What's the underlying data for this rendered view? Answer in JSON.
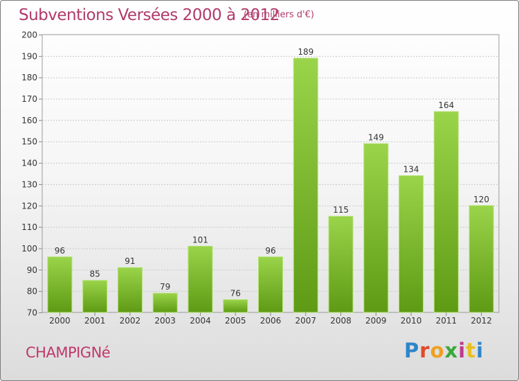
{
  "chart_data": {
    "type": "bar",
    "title": "Subventions Versées 2000 à 2012",
    "subtitle": "(en milliers d'€)",
    "categories": [
      "2000",
      "2001",
      "2002",
      "2003",
      "2004",
      "2005",
      "2006",
      "2007",
      "2008",
      "2009",
      "2010",
      "2011",
      "2012"
    ],
    "values": [
      96,
      85,
      91,
      79,
      101,
      76,
      96,
      189,
      115,
      149,
      134,
      164,
      120
    ],
    "ylim": [
      70,
      200
    ],
    "yticks": [
      70,
      80,
      90,
      100,
      110,
      120,
      130,
      140,
      150,
      160,
      170,
      180,
      190,
      200
    ],
    "grid": true,
    "legend": "none"
  },
  "commune": "CHAMPIGNé",
  "logo": {
    "p1": "P",
    "p2": "r",
    "p3": "o",
    "p4": "x",
    "p5": "i",
    "p6": "t",
    "p7": "i"
  },
  "colors": {
    "bar_top": "#9ad44a",
    "bar_bottom": "#5e9a14",
    "title": "#b03a6a"
  }
}
